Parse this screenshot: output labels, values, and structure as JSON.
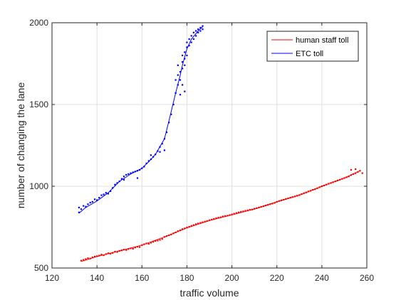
{
  "chart_data": {
    "type": "scatter",
    "title": "",
    "xlabel": "traffic volume",
    "ylabel": "number of changing the lane",
    "xlim": [
      120,
      260
    ],
    "ylim": [
      500,
      2000
    ],
    "xticks": [
      120,
      140,
      160,
      180,
      200,
      220,
      240,
      260
    ],
    "yticks": [
      500,
      1000,
      1500,
      2000
    ],
    "grid": true,
    "legend_placement": "top-right",
    "series": [
      {
        "name": "human staff toll",
        "color": "#ff0000",
        "line": [
          [
            133,
            540
          ],
          [
            140,
            570
          ],
          [
            150,
            605
          ],
          [
            160,
            640
          ],
          [
            170,
            690
          ],
          [
            180,
            745
          ],
          [
            190,
            790
          ],
          [
            200,
            825
          ],
          [
            210,
            860
          ],
          [
            220,
            905
          ],
          [
            230,
            945
          ],
          [
            240,
            1000
          ],
          [
            250,
            1050
          ],
          [
            257,
            1095
          ]
        ],
        "points": [
          [
            133,
            545
          ],
          [
            134,
            550
          ],
          [
            135,
            555
          ],
          [
            136,
            560
          ],
          [
            137,
            558
          ],
          [
            138,
            565
          ],
          [
            139,
            570
          ],
          [
            140,
            572
          ],
          [
            141,
            576
          ],
          [
            142,
            582
          ],
          [
            143,
            578
          ],
          [
            144,
            585
          ],
          [
            145,
            590
          ],
          [
            146,
            588
          ],
          [
            147,
            592
          ],
          [
            148,
            600
          ],
          [
            149,
            598
          ],
          [
            150,
            605
          ],
          [
            151,
            608
          ],
          [
            152,
            612
          ],
          [
            153,
            610
          ],
          [
            154,
            616
          ],
          [
            155,
            620
          ],
          [
            156,
            618
          ],
          [
            157,
            625
          ],
          [
            158,
            630
          ],
          [
            159,
            628
          ],
          [
            160,
            640
          ],
          [
            161,
            645
          ],
          [
            162,
            650
          ],
          [
            163,
            648
          ],
          [
            164,
            655
          ],
          [
            165,
            660
          ],
          [
            166,
            665
          ],
          [
            167,
            668
          ],
          [
            168,
            672
          ],
          [
            169,
            678
          ],
          [
            170,
            690
          ],
          [
            171,
            695
          ],
          [
            172,
            700
          ],
          [
            173,
            705
          ],
          [
            174,
            712
          ],
          [
            175,
            718
          ],
          [
            176,
            725
          ],
          [
            177,
            730
          ],
          [
            178,
            738
          ],
          [
            179,
            742
          ],
          [
            180,
            748
          ],
          [
            181,
            752
          ],
          [
            182,
            758
          ],
          [
            183,
            762
          ],
          [
            184,
            768
          ],
          [
            185,
            772
          ],
          [
            186,
            776
          ],
          [
            187,
            780
          ],
          [
            188,
            784
          ],
          [
            189,
            788
          ],
          [
            190,
            792
          ],
          [
            191,
            796
          ],
          [
            192,
            800
          ],
          [
            193,
            805
          ],
          [
            194,
            808
          ],
          [
            195,
            810
          ],
          [
            196,
            815
          ],
          [
            197,
            818
          ],
          [
            198,
            820
          ],
          [
            199,
            824
          ],
          [
            200,
            828
          ],
          [
            201,
            832
          ],
          [
            202,
            836
          ],
          [
            203,
            840
          ],
          [
            204,
            844
          ],
          [
            205,
            846
          ],
          [
            206,
            850
          ],
          [
            207,
            852
          ],
          [
            208,
            856
          ],
          [
            209,
            858
          ],
          [
            210,
            862
          ],
          [
            211,
            866
          ],
          [
            212,
            870
          ],
          [
            213,
            874
          ],
          [
            214,
            878
          ],
          [
            215,
            882
          ],
          [
            216,
            886
          ],
          [
            217,
            890
          ],
          [
            218,
            894
          ],
          [
            219,
            898
          ],
          [
            220,
            905
          ],
          [
            221,
            910
          ],
          [
            222,
            914
          ],
          [
            223,
            918
          ],
          [
            224,
            922
          ],
          [
            225,
            926
          ],
          [
            226,
            930
          ],
          [
            227,
            934
          ],
          [
            228,
            938
          ],
          [
            229,
            942
          ],
          [
            230,
            946
          ],
          [
            231,
            952
          ],
          [
            232,
            958
          ],
          [
            233,
            962
          ],
          [
            234,
            968
          ],
          [
            235,
            972
          ],
          [
            236,
            978
          ],
          [
            237,
            982
          ],
          [
            238,
            988
          ],
          [
            239,
            994
          ],
          [
            240,
            1000
          ],
          [
            241,
            1005
          ],
          [
            242,
            1010
          ],
          [
            243,
            1015
          ],
          [
            244,
            1020
          ],
          [
            245,
            1025
          ],
          [
            246,
            1030
          ],
          [
            247,
            1035
          ],
          [
            248,
            1040
          ],
          [
            249,
            1045
          ],
          [
            250,
            1050
          ],
          [
            251,
            1055
          ],
          [
            252,
            1060
          ],
          [
            253,
            1068
          ],
          [
            254,
            1075
          ],
          [
            255,
            1080
          ],
          [
            256,
            1088
          ],
          [
            257,
            1095
          ],
          [
            258,
            1080
          ],
          [
            255,
            1105
          ],
          [
            253,
            1100
          ]
        ]
      },
      {
        "name": "ETC toll",
        "color": "#0000ff",
        "line": [
          [
            132,
            835
          ],
          [
            135,
            870
          ],
          [
            140,
            910
          ],
          [
            145,
            960
          ],
          [
            150,
            1030
          ],
          [
            155,
            1075
          ],
          [
            160,
            1110
          ],
          [
            163,
            1150
          ],
          [
            166,
            1195
          ],
          [
            170,
            1290
          ],
          [
            172,
            1400
          ],
          [
            175,
            1570
          ],
          [
            177,
            1680
          ],
          [
            178,
            1740
          ],
          [
            180,
            1840
          ],
          [
            182,
            1900
          ],
          [
            185,
            1950
          ],
          [
            187,
            1975
          ]
        ],
        "points": [
          [
            132,
            840
          ],
          [
            132,
            870
          ],
          [
            133,
            860
          ],
          [
            134,
            880
          ],
          [
            135,
            875
          ],
          [
            136,
            890
          ],
          [
            137,
            900
          ],
          [
            138,
            905
          ],
          [
            139,
            920
          ],
          [
            140,
            915
          ],
          [
            141,
            930
          ],
          [
            142,
            945
          ],
          [
            143,
            950
          ],
          [
            144,
            960
          ],
          [
            145,
            955
          ],
          [
            146,
            970
          ],
          [
            147,
            990
          ],
          [
            148,
            1010
          ],
          [
            149,
            1020
          ],
          [
            150,
            1030
          ],
          [
            151,
            1045
          ],
          [
            152,
            1060
          ],
          [
            153,
            1070
          ],
          [
            154,
            1075
          ],
          [
            155,
            1080
          ],
          [
            156,
            1085
          ],
          [
            157,
            1090
          ],
          [
            158,
            1095
          ],
          [
            159,
            1100
          ],
          [
            160,
            1110
          ],
          [
            161,
            1120
          ],
          [
            162,
            1140
          ],
          [
            163,
            1155
          ],
          [
            164,
            1165
          ],
          [
            165,
            1180
          ],
          [
            166,
            1195
          ],
          [
            167,
            1215
          ],
          [
            168,
            1240
          ],
          [
            169,
            1260
          ],
          [
            170,
            1290
          ],
          [
            171,
            1330
          ],
          [
            172,
            1390
          ],
          [
            173,
            1440
          ],
          [
            174,
            1500
          ],
          [
            175,
            1570
          ],
          [
            176,
            1620
          ],
          [
            176,
            1680
          ],
          [
            177,
            1650
          ],
          [
            177,
            1700
          ],
          [
            178,
            1720
          ],
          [
            178,
            1760
          ],
          [
            178,
            1800
          ],
          [
            179,
            1740
          ],
          [
            179,
            1780
          ],
          [
            179,
            1820
          ],
          [
            180,
            1800
          ],
          [
            180,
            1850
          ],
          [
            180,
            1880
          ],
          [
            181,
            1860
          ],
          [
            181,
            1900
          ],
          [
            182,
            1880
          ],
          [
            182,
            1920
          ],
          [
            183,
            1900
          ],
          [
            183,
            1940
          ],
          [
            184,
            1920
          ],
          [
            184,
            1950
          ],
          [
            185,
            1940
          ],
          [
            185,
            1960
          ],
          [
            186,
            1950
          ],
          [
            186,
            1970
          ],
          [
            187,
            1960
          ],
          [
            187,
            1980
          ],
          [
            177,
            1560
          ],
          [
            178,
            1620
          ],
          [
            179,
            1580
          ],
          [
            176,
            1740
          ],
          [
            175,
            1650
          ],
          [
            170,
            1220
          ],
          [
            168,
            1210
          ],
          [
            164,
            1190
          ],
          [
            158,
            1050
          ],
          [
            152,
            1040
          ]
        ]
      }
    ]
  }
}
